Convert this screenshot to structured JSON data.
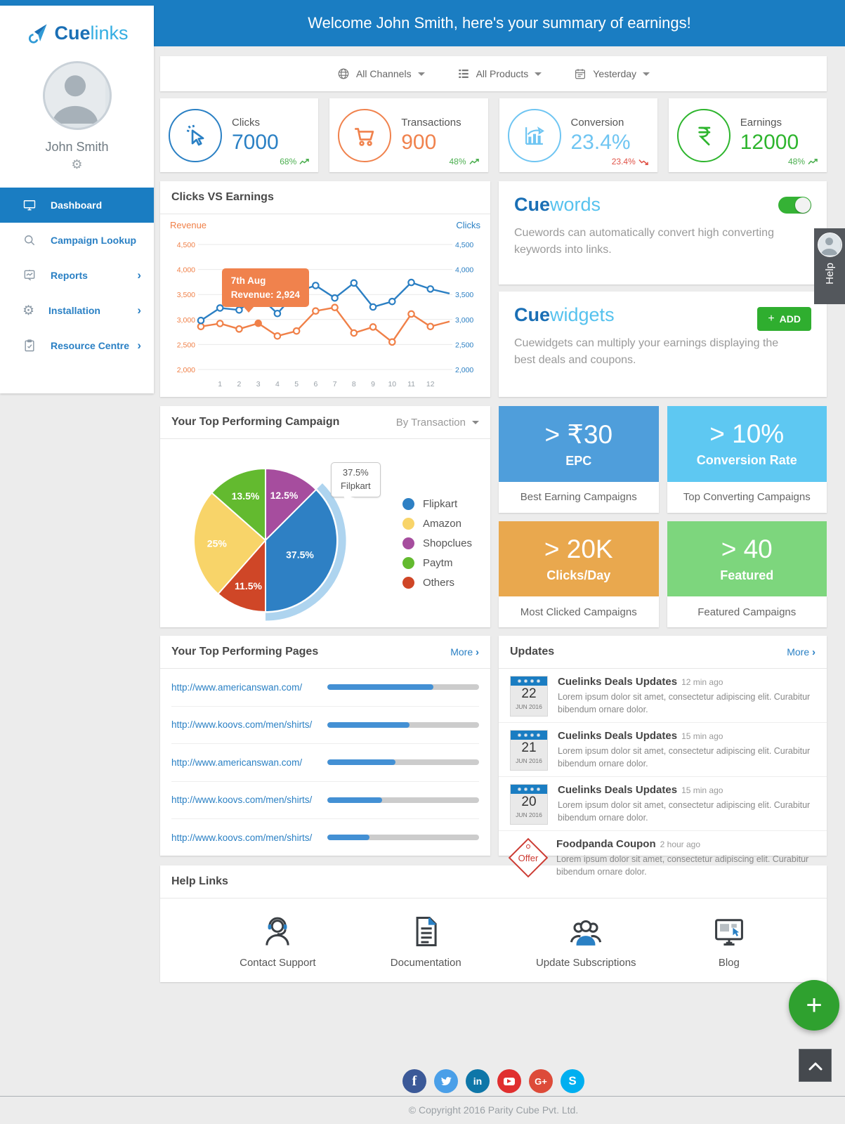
{
  "page": {
    "welcome": "Welcome John Smith, here's your summary of earnings!",
    "copyright": "© Copyright 2016 Parity Cube Pvt. Ltd."
  },
  "colors": {
    "primary_blue": "#1a7dc2",
    "link_blue": "#2a80c4",
    "green": "#2fae2f",
    "up_green": "#4caf50",
    "down_red": "#e05348"
  },
  "sidebar": {
    "logo": {
      "bold": "Cue",
      "light": "links"
    },
    "user": {
      "name": "John Smith"
    },
    "menu": [
      {
        "label": "Dashboard",
        "active": true
      },
      {
        "label": "Campaign Lookup"
      },
      {
        "label": "Reports",
        "chevron": "›"
      },
      {
        "label": "Installation",
        "chevron": "›"
      },
      {
        "label": "Resource Centre",
        "chevron": "›"
      }
    ]
  },
  "filters": {
    "channels": "All Channels",
    "products": "All Products",
    "date": "Yesterday"
  },
  "stats": [
    {
      "label": "Clicks",
      "value": "7000",
      "change": "68%",
      "trend": "up",
      "color": "#2a80c4"
    },
    {
      "label": "Transactions",
      "value": "900",
      "change": "48%",
      "trend": "up",
      "color": "#f0824d"
    },
    {
      "label": "Conversion",
      "value": "23.4%",
      "change": "23.4%",
      "trend": "down",
      "color": "#6fc5f2"
    },
    {
      "label": "Earnings",
      "value": "12000",
      "change": "48%",
      "trend": "up",
      "color": "#2eb52e"
    }
  ],
  "cuewords": {
    "brand_bold": "Cue",
    "brand_light": "words",
    "toggle_on": true,
    "description": "Cuewords can automatically convert high converting keywords into links."
  },
  "cuewidgets": {
    "brand_bold": "Cue",
    "brand_light": "widgets",
    "add_label": "ADD",
    "add_plus": "+",
    "description": "Cuewidgets can multiply your earnings displaying the best deals and coupons."
  },
  "campaign_section": {
    "title": "Your Top Performing Campaign",
    "filter_label": "By Transaction"
  },
  "campaign_cards": [
    {
      "value": "> ₹30",
      "label": "EPC",
      "footer": "Best Earning Campaigns",
      "color": "#4f9edb"
    },
    {
      "value": "> 10%",
      "label": "Conversion Rate",
      "footer": "Top Converting Campaigns",
      "color": "#5ec8f2"
    },
    {
      "value": "> 20K",
      "label": "Clicks/Day",
      "footer": "Most Clicked Campaigns",
      "color": "#e9a84e"
    },
    {
      "value": "> 40",
      "label": "Featured",
      "footer": "Featured Campaigns",
      "color": "#7dd67d"
    }
  ],
  "top_pages": {
    "title": "Your Top Performing Pages",
    "more_label": "More",
    "more_chev": "›",
    "rows": [
      {
        "url": "http://www.americanswan.com/",
        "percent": 70
      },
      {
        "url": "http://www.koovs.com/men/shirts/",
        "percent": 54
      },
      {
        "url": "http://www.americanswan.com/",
        "percent": 45
      },
      {
        "url": "http://www.koovs.com/men/shirts/",
        "percent": 36
      },
      {
        "url": "http://www.koovs.com/men/shirts/",
        "percent": 28
      }
    ]
  },
  "updates": {
    "title": "Updates",
    "more_label": "More",
    "more_chev": "›",
    "items": [
      {
        "type": "calendar",
        "day": "22",
        "month_year": "JUN 2016",
        "title": "Cuelinks Deals Updates",
        "time": "12 min ago",
        "body": "Lorem ipsum dolor sit amet, consectetur adipiscing elit. Curabitur bibendum ornare dolor."
      },
      {
        "type": "calendar",
        "day": "21",
        "month_year": "JUN 2016",
        "title": "Cuelinks Deals Updates",
        "time": "15 min ago",
        "body": "Lorem ipsum dolor sit amet, consectetur adipiscing elit. Curabitur bibendum ornare dolor."
      },
      {
        "type": "calendar",
        "day": "20",
        "month_year": "JUN 2016",
        "title": "Cuelinks Deals Updates",
        "time": "15 min ago",
        "body": "Lorem ipsum dolor sit amet, consectetur adipiscing elit. Curabitur bibendum ornare dolor."
      },
      {
        "type": "offer",
        "offer_text": "Offer",
        "title": "Foodpanda Coupon",
        "time": "2 hour ago",
        "body": "Lorem ipsum dolor sit amet, consectetur adipiscing elit. Curabitur bibendum ornare dolor."
      }
    ]
  },
  "help_links": {
    "title": "Help Links",
    "items": [
      {
        "label": "Contact Support",
        "icon": "headset-icon"
      },
      {
        "label": "Documentation",
        "icon": "document-icon"
      },
      {
        "label": "Update Subscriptions",
        "icon": "people-icon"
      },
      {
        "label": "Blog",
        "icon": "monitor-cursor-icon"
      }
    ]
  },
  "help_tab": {
    "label": "Help"
  },
  "fab": {
    "label": "+"
  },
  "social": [
    "facebook",
    "twitter",
    "linkedin",
    "youtube",
    "google-plus",
    "skype"
  ],
  "chart_data": [
    {
      "type": "line",
      "title": "Clicks VS Earnings",
      "left_axis_label": "Revenue",
      "right_axis_label": "Clicks",
      "ylim": [
        2000,
        4500
      ],
      "yticks": [
        "2,000",
        "2,500",
        "3,000",
        "3,500",
        "4,000",
        "4,500"
      ],
      "ytick_values": [
        2000,
        2500,
        3000,
        3500,
        4000,
        4500
      ],
      "x_labels": [
        "",
        "1",
        "2",
        "3",
        "4",
        "5",
        "6",
        "7",
        "8",
        "9",
        "10",
        "11",
        "12",
        ""
      ],
      "grid": true,
      "series": [
        {
          "name": "Revenue",
          "color": "#f08048",
          "values": [
            2860,
            2920,
            2810,
            2924,
            2670,
            2770,
            3170,
            3240,
            2730,
            2850,
            2550,
            3110,
            2860,
            2960
          ]
        },
        {
          "name": "Clicks",
          "color": "#2b7fc3",
          "values": [
            2980,
            3230,
            3190,
            3480,
            3120,
            3550,
            3680,
            3430,
            3730,
            3250,
            3360,
            3740,
            3610,
            3520
          ]
        }
      ],
      "tooltip": {
        "point_index": 3,
        "series": "Revenue",
        "line1": "7th Aug",
        "line2": "Revenue: 2,924"
      }
    },
    {
      "type": "pie",
      "title": "Your Top Performing Campaign",
      "labels": [
        "Flipkart",
        "Amazon",
        "Shopclues",
        "Paytm",
        "Others"
      ],
      "values": [
        37.5,
        25,
        12.5,
        13.5,
        11.5
      ],
      "colors": [
        "#2e80c4",
        "#f8d469",
        "#a64d9e",
        "#63ba2f",
        "#cf4627"
      ],
      "slice_labels": [
        "37.5%",
        "25%",
        "12.5%",
        "13.5%",
        "11.5%"
      ],
      "draw_order": [
        2,
        0,
        4,
        1,
        3
      ],
      "highlight_slice": "Flipkart",
      "legend_position": "right",
      "callout": {
        "line1": "37.5%",
        "line2": "Filpkart"
      }
    }
  ]
}
